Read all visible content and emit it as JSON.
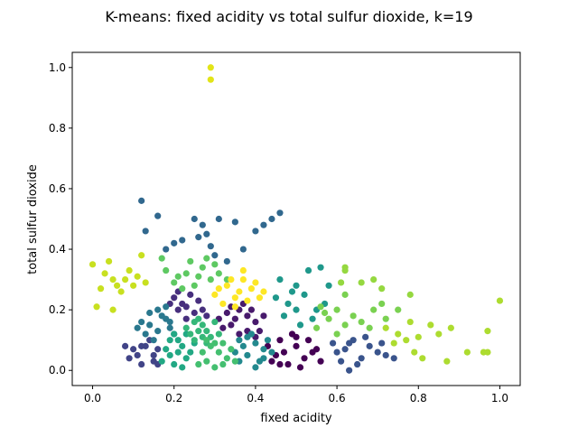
{
  "chart_data": {
    "type": "scatter",
    "title": "K-means: fixed acidity vs total sulfur dioxide, k=19",
    "xlabel": "fixed acidity",
    "ylabel": "total sulfur dioxide",
    "xlim": [
      -0.05,
      1.05
    ],
    "ylim": [
      -0.05,
      1.05
    ],
    "xticks": [
      "0.0",
      "0.2",
      "0.4",
      "0.6",
      "0.8",
      "1.0"
    ],
    "yticks": [
      "0.0",
      "0.2",
      "0.4",
      "0.6",
      "0.8",
      "1.0"
    ],
    "grid": false,
    "legend": "none",
    "clusters": [
      {
        "color": "#440154",
        "points": [
          [
            0.45,
            0.05
          ],
          [
            0.48,
            0.02
          ],
          [
            0.5,
            0.08
          ],
          [
            0.46,
            0.1
          ],
          [
            0.52,
            0.04
          ],
          [
            0.44,
            0.03
          ],
          [
            0.55,
            0.07
          ],
          [
            0.49,
            0.12
          ],
          [
            0.47,
            0.06
          ],
          [
            0.53,
            0.1
          ],
          [
            0.51,
            0.01
          ],
          [
            0.43,
            0.08
          ],
          [
            0.56,
            0.03
          ],
          [
            0.5,
            0.11
          ],
          [
            0.46,
            0.02
          ],
          [
            0.54,
            0.06
          ]
        ]
      },
      {
        "color": "#481a6c",
        "points": [
          [
            0.34,
            0.15
          ],
          [
            0.38,
            0.18
          ],
          [
            0.36,
            0.12
          ],
          [
            0.4,
            0.16
          ],
          [
            0.33,
            0.19
          ],
          [
            0.37,
            0.22
          ],
          [
            0.41,
            0.13
          ],
          [
            0.35,
            0.17
          ],
          [
            0.39,
            0.2
          ],
          [
            0.32,
            0.14
          ],
          [
            0.42,
            0.18
          ],
          [
            0.36,
            0.2
          ],
          [
            0.38,
            0.13
          ],
          [
            0.34,
            0.21
          ],
          [
            0.31,
            0.17
          ],
          [
            0.4,
            0.11
          ]
        ]
      },
      {
        "color": "#472f7d",
        "points": [
          [
            0.22,
            0.22
          ],
          [
            0.25,
            0.19
          ],
          [
            0.2,
            0.24
          ],
          [
            0.23,
            0.17
          ],
          [
            0.26,
            0.23
          ],
          [
            0.21,
            0.2
          ],
          [
            0.24,
            0.25
          ],
          [
            0.27,
            0.2
          ],
          [
            0.19,
            0.22
          ],
          [
            0.23,
            0.21
          ],
          [
            0.28,
            0.18
          ],
          [
            0.21,
            0.26
          ]
        ]
      },
      {
        "color": "#414487",
        "points": [
          [
            0.13,
            0.08
          ],
          [
            0.15,
            0.03
          ],
          [
            0.11,
            0.05
          ],
          [
            0.16,
            0.07
          ],
          [
            0.12,
            0.02
          ],
          [
            0.1,
            0.07
          ],
          [
            0.14,
            0.1
          ],
          [
            0.09,
            0.04
          ],
          [
            0.16,
            0.02
          ],
          [
            0.12,
            0.08
          ],
          [
            0.08,
            0.08
          ],
          [
            0.15,
            0.05
          ]
        ]
      },
      {
        "color": "#3a548c",
        "points": [
          [
            0.6,
            0.06
          ],
          [
            0.63,
            0.09
          ],
          [
            0.66,
            0.04
          ],
          [
            0.61,
            0.03
          ],
          [
            0.68,
            0.08
          ],
          [
            0.64,
            0.1
          ],
          [
            0.7,
            0.06
          ],
          [
            0.62,
            0.07
          ],
          [
            0.65,
            0.02
          ],
          [
            0.72,
            0.05
          ],
          [
            0.59,
            0.09
          ],
          [
            0.67,
            0.11
          ],
          [
            0.63,
            0.0
          ],
          [
            0.71,
            0.09
          ],
          [
            0.74,
            0.04
          ]
        ]
      },
      {
        "color": "#31688e",
        "points": [
          [
            0.16,
            0.51
          ],
          [
            0.25,
            0.5
          ],
          [
            0.27,
            0.48
          ],
          [
            0.28,
            0.45
          ],
          [
            0.31,
            0.5
          ],
          [
            0.35,
            0.49
          ],
          [
            0.4,
            0.46
          ],
          [
            0.42,
            0.48
          ],
          [
            0.44,
            0.5
          ],
          [
            0.46,
            0.52
          ],
          [
            0.12,
            0.56
          ],
          [
            0.13,
            0.46
          ],
          [
            0.2,
            0.42
          ],
          [
            0.22,
            0.43
          ],
          [
            0.3,
            0.38
          ],
          [
            0.37,
            0.4
          ],
          [
            0.18,
            0.4
          ],
          [
            0.33,
            0.36
          ],
          [
            0.26,
            0.44
          ],
          [
            0.29,
            0.41
          ]
        ]
      },
      {
        "color": "#2a788e",
        "points": [
          [
            0.14,
            0.15
          ],
          [
            0.17,
            0.18
          ],
          [
            0.13,
            0.12
          ],
          [
            0.16,
            0.2
          ],
          [
            0.19,
            0.14
          ],
          [
            0.15,
            0.1
          ],
          [
            0.18,
            0.17
          ],
          [
            0.12,
            0.16
          ],
          [
            0.2,
            0.12
          ],
          [
            0.16,
            0.13
          ],
          [
            0.14,
            0.19
          ],
          [
            0.18,
            0.21
          ],
          [
            0.11,
            0.14
          ],
          [
            0.19,
            0.16
          ]
        ]
      },
      {
        "color": "#23898e",
        "points": [
          [
            0.38,
            0.05
          ],
          [
            0.4,
            0.09
          ],
          [
            0.36,
            0.03
          ],
          [
            0.42,
            0.07
          ],
          [
            0.39,
            0.12
          ],
          [
            0.37,
            0.08
          ],
          [
            0.41,
            0.03
          ],
          [
            0.43,
            0.1
          ],
          [
            0.35,
            0.06
          ],
          [
            0.4,
            0.01
          ],
          [
            0.38,
            0.11
          ],
          [
            0.42,
            0.04
          ],
          [
            0.36,
            0.1
          ],
          [
            0.44,
            0.06
          ]
        ]
      },
      {
        "color": "#1f988b",
        "points": [
          [
            0.46,
            0.3
          ],
          [
            0.5,
            0.28
          ],
          [
            0.48,
            0.22
          ],
          [
            0.52,
            0.25
          ],
          [
            0.55,
            0.2
          ],
          [
            0.47,
            0.18
          ],
          [
            0.53,
            0.33
          ],
          [
            0.5,
            0.2
          ],
          [
            0.45,
            0.24
          ],
          [
            0.57,
            0.22
          ],
          [
            0.49,
            0.26
          ],
          [
            0.54,
            0.17
          ],
          [
            0.58,
            0.28
          ],
          [
            0.56,
            0.34
          ],
          [
            0.51,
            0.15
          ]
        ]
      },
      {
        "color": "#22a884",
        "points": [
          [
            0.19,
            0.05
          ],
          [
            0.22,
            0.08
          ],
          [
            0.2,
            0.02
          ],
          [
            0.23,
            0.04
          ],
          [
            0.21,
            0.1
          ],
          [
            0.18,
            0.07
          ],
          [
            0.24,
            0.06
          ],
          [
            0.2,
            0.12
          ],
          [
            0.22,
            0.01
          ],
          [
            0.25,
            0.09
          ],
          [
            0.19,
            0.1
          ],
          [
            0.23,
            0.12
          ],
          [
            0.17,
            0.03
          ],
          [
            0.21,
            0.06
          ]
        ]
      },
      {
        "color": "#35b779",
        "points": [
          [
            0.24,
            0.12
          ],
          [
            0.27,
            0.15
          ],
          [
            0.25,
            0.1
          ],
          [
            0.28,
            0.13
          ],
          [
            0.26,
            0.17
          ],
          [
            0.29,
            0.11
          ],
          [
            0.23,
            0.14
          ],
          [
            0.3,
            0.16
          ],
          [
            0.26,
            0.13
          ],
          [
            0.28,
            0.09
          ],
          [
            0.25,
            0.16
          ],
          [
            0.31,
            0.12
          ],
          [
            0.27,
            0.11
          ]
        ]
      },
      {
        "color": "#44bf70",
        "points": [
          [
            0.28,
            0.03
          ],
          [
            0.31,
            0.06
          ],
          [
            0.3,
            0.01
          ],
          [
            0.33,
            0.04
          ],
          [
            0.29,
            0.08
          ],
          [
            0.32,
            0.02
          ],
          [
            0.27,
            0.06
          ],
          [
            0.34,
            0.07
          ],
          [
            0.3,
            0.09
          ],
          [
            0.26,
            0.02
          ],
          [
            0.32,
            0.09
          ],
          [
            0.35,
            0.03
          ],
          [
            0.28,
            0.1
          ]
        ]
      },
      {
        "color": "#5ec962",
        "points": [
          [
            0.2,
            0.29
          ],
          [
            0.23,
            0.32
          ],
          [
            0.25,
            0.28
          ],
          [
            0.27,
            0.34
          ],
          [
            0.29,
            0.3
          ],
          [
            0.24,
            0.36
          ],
          [
            0.26,
            0.31
          ],
          [
            0.3,
            0.35
          ],
          [
            0.22,
            0.27
          ],
          [
            0.28,
            0.37
          ],
          [
            0.31,
            0.32
          ],
          [
            0.18,
            0.33
          ],
          [
            0.21,
            0.31
          ],
          [
            0.33,
            0.3
          ],
          [
            0.17,
            0.37
          ]
        ]
      },
      {
        "color": "#7ad151",
        "points": [
          [
            0.55,
            0.14
          ],
          [
            0.58,
            0.17
          ],
          [
            0.6,
            0.12
          ],
          [
            0.62,
            0.15
          ],
          [
            0.57,
            0.19
          ],
          [
            0.64,
            0.18
          ],
          [
            0.66,
            0.16
          ],
          [
            0.6,
            0.2
          ],
          [
            0.56,
            0.21
          ],
          [
            0.69,
            0.2
          ],
          [
            0.71,
            0.22
          ],
          [
            0.62,
            0.25
          ],
          [
            0.72,
            0.17
          ],
          [
            0.75,
            0.2
          ],
          [
            0.68,
            0.14
          ]
        ]
      },
      {
        "color": "#95d840",
        "points": [
          [
            0.62,
            0.33
          ],
          [
            0.62,
            0.34
          ],
          [
            0.69,
            0.3
          ],
          [
            0.61,
            0.29
          ],
          [
            0.78,
            0.25
          ],
          [
            0.66,
            0.29
          ],
          [
            0.71,
            0.27
          ]
        ]
      },
      {
        "color": "#addc30",
        "points": [
          [
            0.72,
            0.14
          ],
          [
            0.75,
            0.12
          ],
          [
            0.78,
            0.16
          ],
          [
            0.8,
            0.11
          ],
          [
            0.83,
            0.15
          ],
          [
            0.77,
            0.1
          ],
          [
            0.85,
            0.12
          ],
          [
            0.74,
            0.09
          ],
          [
            0.81,
            0.04
          ],
          [
            0.79,
            0.06
          ],
          [
            0.87,
            0.03
          ],
          [
            0.92,
            0.06
          ],
          [
            0.97,
            0.06
          ],
          [
            0.96,
            0.06
          ],
          [
            1.0,
            0.23
          ],
          [
            0.97,
            0.13
          ],
          [
            0.88,
            0.14
          ]
        ]
      },
      {
        "color": "#c8e020",
        "points": [
          [
            0.0,
            0.35
          ],
          [
            0.03,
            0.32
          ],
          [
            0.05,
            0.3
          ],
          [
            0.04,
            0.36
          ],
          [
            0.06,
            0.28
          ],
          [
            0.08,
            0.3
          ],
          [
            0.09,
            0.33
          ],
          [
            0.11,
            0.31
          ],
          [
            0.13,
            0.29
          ],
          [
            0.07,
            0.26
          ],
          [
            0.02,
            0.27
          ],
          [
            0.12,
            0.38
          ],
          [
            0.05,
            0.2
          ],
          [
            0.01,
            0.21
          ],
          [
            0.1,
            0.28
          ]
        ]
      },
      {
        "color": "#e2e418",
        "points": [
          [
            0.29,
            1.0
          ],
          [
            0.29,
            0.96
          ]
        ]
      },
      {
        "color": "#fde725",
        "points": [
          [
            0.3,
            0.25
          ],
          [
            0.33,
            0.28
          ],
          [
            0.35,
            0.24
          ],
          [
            0.37,
            0.3
          ],
          [
            0.32,
            0.22
          ],
          [
            0.36,
            0.26
          ],
          [
            0.39,
            0.27
          ],
          [
            0.41,
            0.24
          ],
          [
            0.34,
            0.3
          ],
          [
            0.38,
            0.23
          ],
          [
            0.31,
            0.27
          ],
          [
            0.4,
            0.29
          ],
          [
            0.35,
            0.21
          ],
          [
            0.42,
            0.26
          ],
          [
            0.37,
            0.33
          ]
        ]
      }
    ]
  }
}
